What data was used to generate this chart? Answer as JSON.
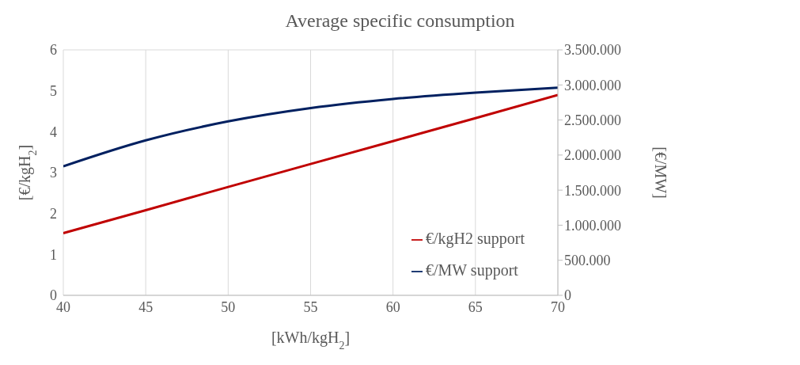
{
  "chart_data": {
    "type": "line",
    "title": "Average specific consumption",
    "xlabel": "[kWh/kgH$_{2}$]",
    "ylabel": "[€/kgH$_{2}$]",
    "y2label": "[€/MW]",
    "x": [
      40,
      45,
      50,
      55,
      60,
      65,
      70
    ],
    "series": [
      {
        "name": "€/kgH2 support",
        "color": "#c00000",
        "values": [
          1.52,
          2.08,
          2.65,
          3.21,
          3.77,
          4.33,
          4.9
        ]
      },
      {
        "name": "€/MW support",
        "color": "#002060",
        "axis": "y2",
        "values": [
          1840000,
          2210000,
          2480000,
          2670000,
          2800000,
          2890000,
          2960000
        ]
      }
    ],
    "xlim": [
      40,
      70
    ],
    "xticks": [
      40,
      45,
      50,
      55,
      60,
      65,
      70
    ],
    "ylim": [
      0,
      6
    ],
    "yticks": [
      0,
      1,
      2,
      3,
      4,
      5,
      6
    ],
    "y2lim": [
      0,
      3500000
    ],
    "y2ticks": [
      {
        "value": 0,
        "label": "0"
      },
      {
        "value": 500000,
        "label": "500.000"
      },
      {
        "value": 1000000,
        "label": "1.000.000"
      },
      {
        "value": 1500000,
        "label": "1.500.000"
      },
      {
        "value": 2000000,
        "label": "2.000.000"
      },
      {
        "value": 2500000,
        "label": "2.500.000"
      },
      {
        "value": 3000000,
        "label": "3.000.000"
      },
      {
        "value": 3500000,
        "label": "3.500.000"
      }
    ],
    "grid": true,
    "legend": "bottom right",
    "marker": "none",
    "line_style": "solid"
  }
}
